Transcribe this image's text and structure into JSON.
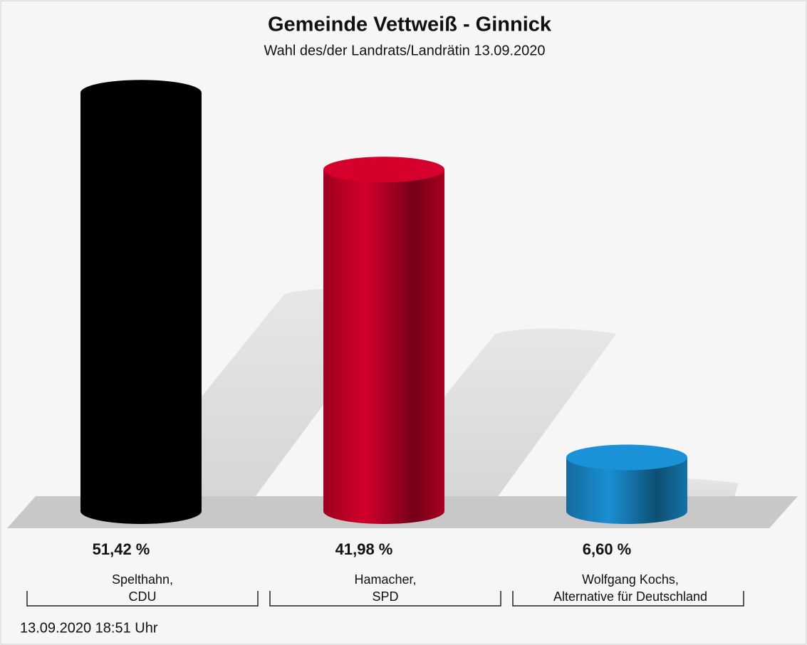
{
  "chart_data": {
    "type": "bar",
    "title": "Gemeinde Vettweiß - Ginnick",
    "subtitle": "Wahl des/der Landrats/Landrätin 13.09.2020",
    "categories": [
      [
        "Spelthahn,",
        "CDU"
      ],
      [
        "Hamacher,",
        "SPD"
      ],
      [
        "Wolfgang Kochs,",
        "Alternative für Deutschland"
      ]
    ],
    "values": [
      51.42,
      41.98,
      6.6
    ],
    "value_labels": [
      "51,42 %",
      "41,98 %",
      "6,60 %"
    ],
    "colors": [
      "#000000",
      "#d2002b",
      "#1a8fd3"
    ],
    "footer": "13.09.2020 18:51 Uhr"
  }
}
